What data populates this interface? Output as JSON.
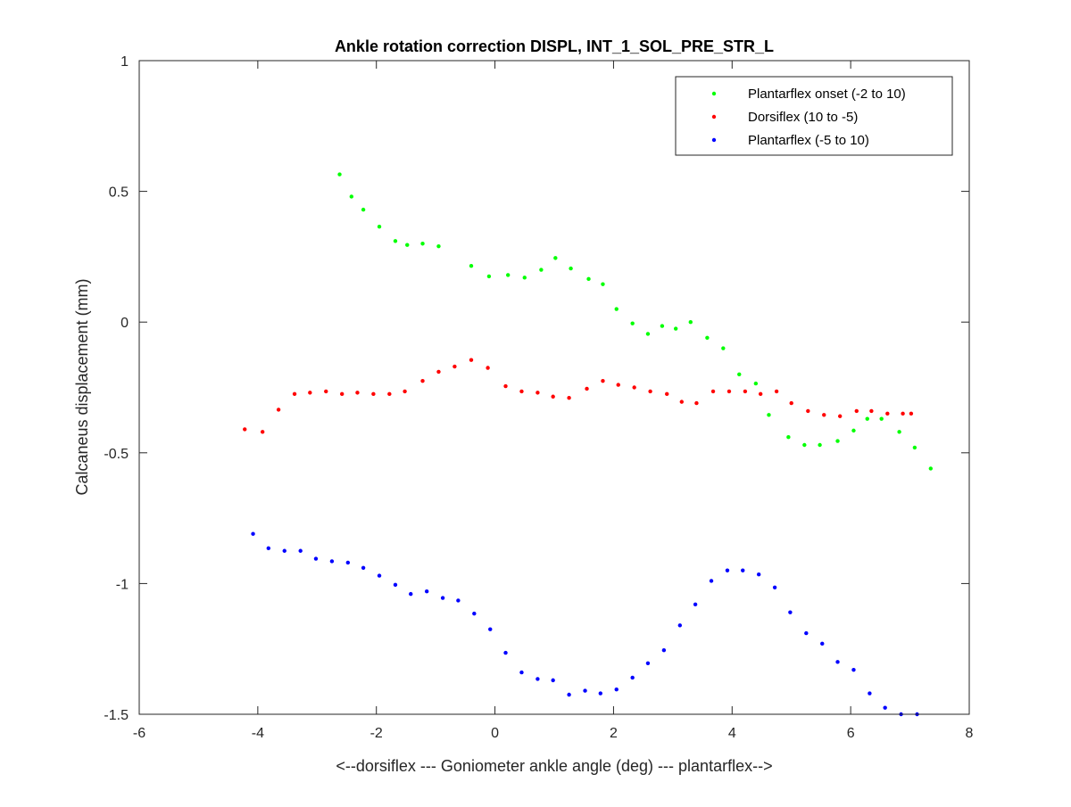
{
  "chart_data": {
    "type": "scatter",
    "title": "Ankle rotation correction DISPL, INT_1_SOL_PRE_STR_L",
    "xlabel": "<--dorsiflex --- Goniometer ankle angle (deg) --- plantarflex-->",
    "ylabel": "Calcaneus displacement (mm)",
    "xlim": [
      -6,
      8
    ],
    "ylim": [
      -1.5,
      1
    ],
    "xticks": [
      -6,
      -4,
      -2,
      0,
      2,
      4,
      6,
      8
    ],
    "yticks": [
      -1.5,
      -1,
      -0.5,
      0,
      0.5,
      1
    ],
    "xtick_labels": [
      "-6",
      "-4",
      "-2",
      "0",
      "2",
      "4",
      "6",
      "8"
    ],
    "ytick_labels": [
      "-1.5",
      "-1",
      "-0.5",
      "0",
      "0.5",
      "1"
    ],
    "grid": false,
    "legend_position": "top-right",
    "series": [
      {
        "name": "Plantarflex onset (-2 to 10)",
        "color": "#00ff00",
        "x": [
          -2.62,
          -2.42,
          -2.22,
          -1.95,
          -1.68,
          -1.48,
          -1.22,
          -0.95,
          -0.4,
          -0.1,
          0.22,
          0.5,
          0.78,
          1.02,
          1.28,
          1.58,
          1.82,
          2.05,
          2.32,
          2.58,
          2.82,
          3.05,
          3.3,
          3.58,
          3.85,
          4.12,
          4.4,
          4.62,
          4.95,
          5.22,
          5.48,
          5.78,
          6.05,
          6.28,
          6.52,
          6.82,
          7.08,
          7.35
        ],
        "y": [
          0.565,
          0.48,
          0.43,
          0.365,
          0.31,
          0.295,
          0.3,
          0.29,
          0.215,
          0.175,
          0.18,
          0.17,
          0.2,
          0.245,
          0.205,
          0.165,
          0.145,
          0.05,
          -0.005,
          -0.045,
          -0.015,
          -0.025,
          0.0,
          -0.06,
          -0.1,
          -0.2,
          -0.235,
          -0.355,
          -0.44,
          -0.47,
          -0.47,
          -0.455,
          -0.415,
          -0.37,
          -0.37,
          -0.42,
          -0.48,
          -0.56
        ]
      },
      {
        "name": "Dorsiflex (10 to -5)",
        "color": "#ff0000",
        "x": [
          -4.22,
          -3.92,
          -3.65,
          -3.38,
          -3.12,
          -2.85,
          -2.58,
          -2.32,
          -2.05,
          -1.78,
          -1.52,
          -1.22,
          -0.95,
          -0.68,
          -0.4,
          -0.12,
          0.18,
          0.45,
          0.72,
          0.98,
          1.25,
          1.55,
          1.82,
          2.08,
          2.35,
          2.62,
          2.9,
          3.15,
          3.4,
          3.68,
          3.95,
          4.22,
          4.48,
          4.75,
          5.0,
          5.28,
          5.55,
          5.82,
          6.1,
          6.35,
          6.62,
          6.88,
          7.02
        ],
        "y": [
          -0.41,
          -0.42,
          -0.335,
          -0.275,
          -0.27,
          -0.265,
          -0.275,
          -0.27,
          -0.275,
          -0.275,
          -0.265,
          -0.225,
          -0.19,
          -0.17,
          -0.145,
          -0.175,
          -0.245,
          -0.265,
          -0.27,
          -0.285,
          -0.29,
          -0.255,
          -0.225,
          -0.24,
          -0.25,
          -0.265,
          -0.275,
          -0.305,
          -0.31,
          -0.265,
          -0.265,
          -0.265,
          -0.275,
          -0.265,
          -0.31,
          -0.34,
          -0.355,
          -0.36,
          -0.34,
          -0.34,
          -0.35,
          -0.35,
          -0.35
        ]
      },
      {
        "name": "Plantarflex (-5 to 10)",
        "color": "#0000ff",
        "x": [
          -4.08,
          -3.82,
          -3.55,
          -3.28,
          -3.02,
          -2.75,
          -2.48,
          -2.22,
          -1.95,
          -1.68,
          -1.42,
          -1.15,
          -0.88,
          -0.62,
          -0.35,
          -0.08,
          0.18,
          0.45,
          0.72,
          0.98,
          1.25,
          1.52,
          1.78,
          2.05,
          2.32,
          2.58,
          2.85,
          3.12,
          3.38,
          3.65,
          3.92,
          4.18,
          4.45,
          4.72,
          4.98,
          5.25,
          5.52,
          5.78,
          6.05,
          6.32,
          6.58,
          6.85,
          7.12
        ],
        "y": [
          -0.81,
          -0.865,
          -0.875,
          -0.875,
          -0.905,
          -0.915,
          -0.92,
          -0.94,
          -0.97,
          -1.005,
          -1.04,
          -1.03,
          -1.055,
          -1.065,
          -1.115,
          -1.175,
          -1.265,
          -1.34,
          -1.365,
          -1.37,
          -1.425,
          -1.41,
          -1.42,
          -1.405,
          -1.36,
          -1.305,
          -1.255,
          -1.16,
          -1.08,
          -0.99,
          -0.95,
          -0.95,
          -0.965,
          -1.015,
          -1.11,
          -1.19,
          -1.23,
          -1.3,
          -1.33,
          -1.42,
          -1.475,
          -1.5,
          -1.5
        ]
      }
    ]
  }
}
